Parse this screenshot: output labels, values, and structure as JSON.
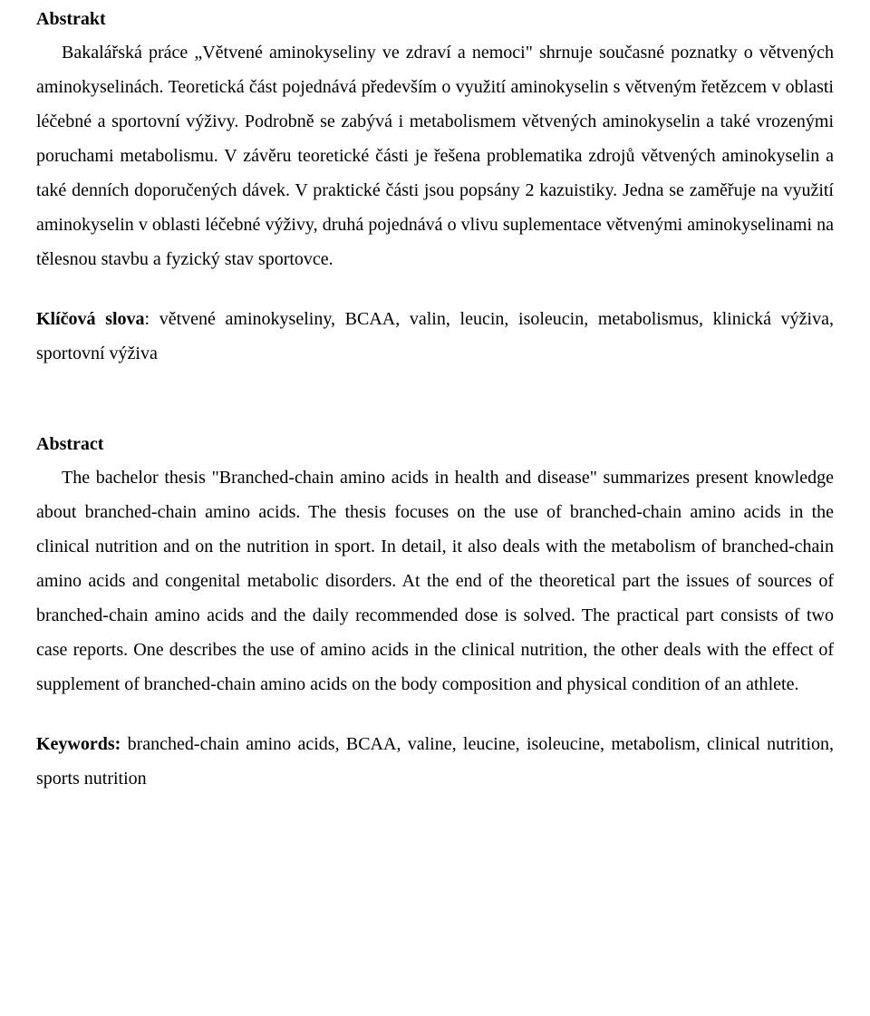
{
  "abstrakt": {
    "heading": "Abstrakt",
    "body": "Bakalářská práce „Větvené aminokyseliny ve zdraví a nemoci\" shrnuje současné poznatky o větvených aminokyselinách. Teoretická část pojednává především o využití aminokyselin s větveným řetězcem v oblasti léčebné a sportovní výživy. Podrobně se zabývá i metabolismem větvených aminokyselin a také vrozenými poruchami metabolismu. V závěru teoretické části je řešena problematika zdrojů větvených aminokyselin a také denních doporučených dávek. V praktické části jsou popsány 2 kazuistiky. Jedna se zaměřuje na využití aminokyselin v oblasti léčebné výživy, druhá pojednává o vlivu suplementace větvenými aminokyselinami na tělesnou stavbu a fyzický stav sportovce.",
    "keywords_label": "Klíčová slova",
    "keywords_text": ": větvené aminokyseliny, BCAA, valin, leucin, isoleucin, metabolismus, klinická výživa, sportovní výživa"
  },
  "abstract": {
    "heading": "Abstract",
    "body": "The bachelor thesis \"Branched-chain amino acids in health and disease\" summarizes present knowledge about branched-chain amino acids. The thesis focuses on the use of branched-chain amino acids in the clinical nutrition and on the nutrition in sport. In detail, it also deals with the metabolism of branched-chain amino acids and congenital metabolic disorders. At the end of the theoretical part the issues of sources of branched-chain amino acids and the daily recommended dose is solved. The practical part consists of two case reports. One describes the use of amino acids in the clinical nutrition, the other deals with the effect of supplement of branched-chain amino acids on the body composition and physical condition of an athlete.",
    "keywords_label": "Keywords:",
    "keywords_text": " branched-chain amino acids, BCAA, valine, leucine, isoleucine, metabolism, clinical nutrition, sports nutrition"
  }
}
